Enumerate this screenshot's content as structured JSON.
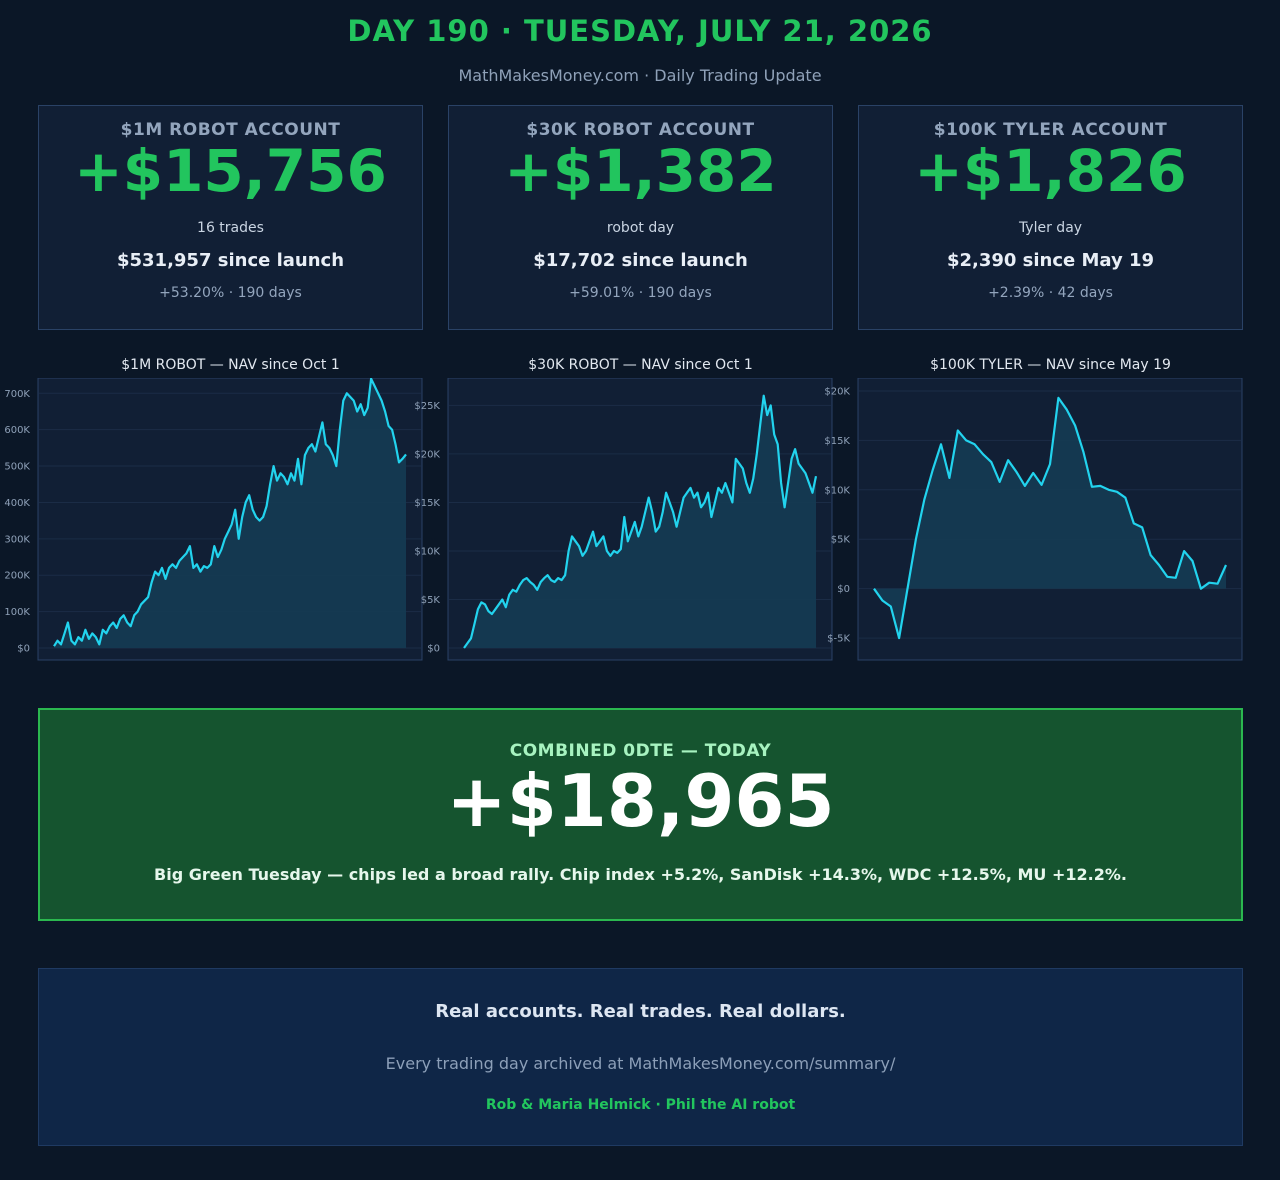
{
  "header": {
    "title": "DAY 190 · TUESDAY, JULY 21, 2026",
    "subtitle": "MathMakesMoney.com  ·  Daily Trading Update"
  },
  "cards": [
    {
      "label": "$1M ROBOT ACCOUNT",
      "pnl": "+$15,756",
      "note": "16 trades",
      "since": "$531,957 since launch",
      "pct": "+53.20% · 190 days"
    },
    {
      "label": "$30K ROBOT ACCOUNT",
      "pnl": "+$1,382",
      "note": "robot day",
      "since": "$17,702 since launch",
      "pct": "+59.01% · 190 days"
    },
    {
      "label": "$100K TYLER ACCOUNT",
      "pnl": "+$1,826",
      "note": "Tyler day",
      "since": "$2,390 since May 19",
      "pct": "+2.39% · 42 days"
    }
  ],
  "colors": {
    "positive": "#22c55e",
    "line": "#22d3ee",
    "fill": "#153a52",
    "panel": "#111f35"
  },
  "chart_data": [
    {
      "type": "area",
      "title": "$1M ROBOT — NAV since Oct 1",
      "ylim": [
        0,
        720000
      ],
      "yticks": [
        0,
        100000,
        200000,
        300000,
        400000,
        500000,
        600000,
        700000
      ],
      "ytick_labels": [
        "$0",
        "100K",
        "200K",
        "300K",
        "400K",
        "500K",
        "600K",
        "700K"
      ],
      "grid": true,
      "series": [
        {
          "values": [
            5000,
            20000,
            10000,
            40000,
            70000,
            20000,
            10000,
            30000,
            20000,
            50000,
            25000,
            40000,
            30000,
            10000,
            50000,
            40000,
            60000,
            70000,
            55000,
            80000,
            90000,
            70000,
            60000,
            90000,
            100000,
            120000,
            130000,
            140000,
            180000,
            210000,
            200000,
            220000,
            190000,
            220000,
            230000,
            220000,
            240000,
            250000,
            260000,
            280000,
            220000,
            230000,
            210000,
            225000,
            220000,
            230000,
            280000,
            250000,
            270000,
            300000,
            320000,
            340000,
            380000,
            300000,
            360000,
            400000,
            420000,
            380000,
            360000,
            350000,
            360000,
            390000,
            450000,
            500000,
            460000,
            480000,
            470000,
            450000,
            480000,
            460000,
            520000,
            450000,
            530000,
            550000,
            560000,
            540000,
            580000,
            620000,
            560000,
            550000,
            530000,
            500000,
            600000,
            680000,
            700000,
            690000,
            680000,
            650000,
            670000,
            640000,
            660000,
            740000,
            720000,
            700000,
            680000,
            650000,
            610000,
            600000,
            560000,
            510000,
            520000,
            532000
          ]
        }
      ]
    },
    {
      "type": "area",
      "title": "$30K ROBOT — NAV since Oct 1",
      "ylim": [
        0,
        27000
      ],
      "yticks": [
        0,
        5000,
        10000,
        15000,
        20000,
        25000
      ],
      "ytick_labels": [
        "$0",
        "$5K",
        "$10K",
        "$15K",
        "$20K",
        "$25K"
      ],
      "grid": true,
      "series": [
        {
          "values": [
            0,
            500,
            1000,
            2500,
            4000,
            4700,
            4500,
            3800,
            3500,
            4000,
            4500,
            5000,
            4200,
            5500,
            6000,
            5800,
            6500,
            7000,
            7200,
            6800,
            6500,
            6000,
            6800,
            7200,
            7500,
            7000,
            6800,
            7200,
            7000,
            7500,
            10000,
            11500,
            11000,
            10500,
            9500,
            10000,
            11000,
            12000,
            10500,
            11000,
            11500,
            10000,
            9500,
            10000,
            9800,
            10200,
            13500,
            11000,
            12000,
            13000,
            11500,
            12500,
            14000,
            15500,
            14000,
            12000,
            12500,
            14000,
            16000,
            15000,
            14000,
            12500,
            14000,
            15500,
            16000,
            16500,
            15500,
            16000,
            14500,
            15000,
            16000,
            13500,
            15000,
            16500,
            16000,
            17000,
            16000,
            15000,
            19500,
            19000,
            18500,
            17000,
            16000,
            17500,
            20000,
            23000,
            26000,
            24000,
            25000,
            22000,
            21000,
            17000,
            14500,
            17000,
            19500,
            20500,
            19000,
            18500,
            18000,
            17000,
            16000,
            17702
          ]
        }
      ]
    },
    {
      "type": "area",
      "title": "$100K TYLER — NAV since May 19",
      "ylim": [
        -6000,
        20500
      ],
      "yticks": [
        -5000,
        0,
        5000,
        10000,
        15000,
        20000
      ],
      "ytick_labels": [
        "$-5K",
        "$0",
        "$5K",
        "$10K",
        "$15K",
        "$20K"
      ],
      "grid": true,
      "series": [
        {
          "values": [
            0,
            -1200,
            -1800,
            -5000,
            0,
            5000,
            9000,
            12000,
            14600,
            11200,
            16000,
            15000,
            14600,
            13600,
            12800,
            10800,
            13000,
            11800,
            10400,
            11700,
            10500,
            12600,
            19300,
            18100,
            16500,
            13800,
            10300,
            10400,
            10000,
            9800,
            9200,
            6600,
            6200,
            3400,
            2400,
            1200,
            1100,
            3800,
            2800,
            0,
            600,
            500,
            2390
          ]
        }
      ]
    }
  ],
  "combined": {
    "label": "COMBINED 0DTE — TODAY",
    "pnl": "+$18,965",
    "note": "Big Green Tuesday — chips led a broad rally. Chip index +5.2%, SanDisk +14.3%, WDC +12.5%, MU +12.2%."
  },
  "footer": {
    "tagline": "Real accounts. Real trades. Real dollars.",
    "archive": "Every trading day archived at MathMakesMoney.com/summary/",
    "credit": "Rob & Maria Helmick  ·  Phil the AI robot"
  }
}
